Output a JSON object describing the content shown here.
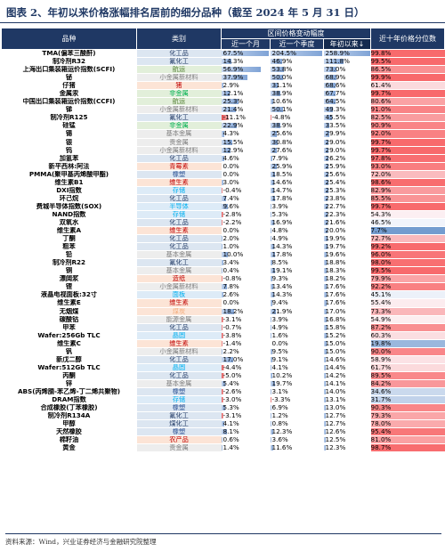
{
  "title": "图表 2、年初以来价格涨幅排名居前的细分品种（截至 2024 年 5 月 31 日）",
  "header": {
    "name": "品种",
    "category": "类别",
    "group": "区间价格变动幅度",
    "m1": "近一个月",
    "q1": "近一个季度",
    "ytd": "年初以来↓",
    "pct": "近十年价格分位数"
  },
  "colors": {
    "header_bg": "#1f3864",
    "bar_positive": "#7fa3d6",
    "bar_negative": "#e04848",
    "pct_high": "#f8696b",
    "pct_low": "#5a8ac6"
  },
  "rows": [
    {
      "name": "TMA(偏苯三酸酐)",
      "cat": "化工品",
      "m1": 67.5,
      "q1": 204.5,
      "ytd": 258.9,
      "pct": 99.8
    },
    {
      "name": "制冷剂R32",
      "cat": "氟化工",
      "m1": 14.3,
      "q1": 46.9,
      "ytd": 111.8,
      "pct": 99.5
    },
    {
      "name": "上海出口集装箱运价指数(SCFI)",
      "cat": "航运",
      "m1": 56.9,
      "q1": 53.8,
      "ytd": 73.0,
      "pct": 86.5
    },
    {
      "name": "铋",
      "cat": "小金属新材料",
      "m1": 37.9,
      "q1": 50.0,
      "ytd": 68.9,
      "pct": 99.9
    },
    {
      "name": "仔猪",
      "cat": "猪",
      "m1": 2.9,
      "q1": 31.1,
      "ytd": 68.6,
      "pct": 61.4
    },
    {
      "name": "金属汞",
      "cat": "非金属",
      "m1": 12.1,
      "q1": 38.9,
      "ytd": 67.7,
      "pct": 99.7
    },
    {
      "name": "中国出口集装箱运价指数(CCFI)",
      "cat": "航运",
      "m1": 25.3,
      "q1": 10.6,
      "ytd": 64.5,
      "pct": 80.6
    },
    {
      "name": "锑",
      "cat": "小金属新材料",
      "m1": 21.4,
      "q1": 50.1,
      "ytd": 49.3,
      "pct": 91.0
    },
    {
      "name": "制冷剂R125",
      "cat": "氟化工",
      "m1": -11.1,
      "q1": -4.8,
      "ytd": 45.5,
      "pct": 82.5
    },
    {
      "name": "硅锰",
      "cat": "非金属",
      "m1": 22.9,
      "q1": 38.9,
      "ytd": 33.5,
      "pct": 90.9
    },
    {
      "name": "锡",
      "cat": "基本金属",
      "m1": 4.3,
      "q1": 25.6,
      "ytd": 29.9,
      "pct": 92.0
    },
    {
      "name": "银",
      "cat": "贵金属",
      "m1": 15.5,
      "q1": 30.8,
      "ytd": 29.0,
      "pct": 99.7
    },
    {
      "name": "钨",
      "cat": "小金属新材料",
      "m1": 12.9,
      "q1": 27.6,
      "ytd": 29.0,
      "pct": 99.7
    },
    {
      "name": "加氢苯",
      "cat": "化工品",
      "m1": 4.6,
      "q1": 7.9,
      "ytd": 26.2,
      "pct": 97.8
    },
    {
      "name": "新平西林:阿法",
      "cat": "青霉素",
      "m1": 0.0,
      "q1": 25.9,
      "ytd": 25.9,
      "pct": 93.0
    },
    {
      "name": "PMMA(聚甲基丙烯酸甲酯)",
      "cat": "橡塑",
      "m1": 0.0,
      "q1": 18.5,
      "ytd": 25.6,
      "pct": 72.0
    },
    {
      "name": "维生素B1",
      "cat": "维生素",
      "m1": 3.0,
      "q1": 14.6,
      "ytd": 25.4,
      "pct": 98.6
    },
    {
      "name": "DXI指数",
      "cat": "存储",
      "m1": -0.4,
      "q1": 14.7,
      "ytd": 25.3,
      "pct": 82.9
    },
    {
      "name": "环己烷",
      "cat": "化工品",
      "m1": 7.4,
      "q1": 17.8,
      "ytd": 23.8,
      "pct": 85.5
    },
    {
      "name": "费城半导体指数(SOX)",
      "cat": "半导体",
      "m1": 9.6,
      "q1": 3.9,
      "ytd": 22.7,
      "pct": 99.7
    },
    {
      "name": "NAND指数",
      "cat": "存储",
      "m1": -2.8,
      "q1": 5.3,
      "ytd": 22.3,
      "pct": 54.3
    },
    {
      "name": "双氧水",
      "cat": "化工品",
      "m1": -2.2,
      "q1": 16.9,
      "ytd": 21.6,
      "pct": 46.5
    },
    {
      "name": "维生素A",
      "cat": "维生素",
      "m1": 0.0,
      "q1": 4.8,
      "ytd": 20.0,
      "pct": 7.7
    },
    {
      "name": "丁酮",
      "cat": "化工品",
      "m1": 2.0,
      "q1": 4.9,
      "ytd": 19.9,
      "pct": 72.7
    },
    {
      "name": "粗苯",
      "cat": "化工品",
      "m1": 1.0,
      "q1": 14.3,
      "ytd": 19.7,
      "pct": 99.2
    },
    {
      "name": "铅",
      "cat": "基本金属",
      "m1": 10.0,
      "q1": 17.8,
      "ytd": 19.6,
      "pct": 96.0
    },
    {
      "name": "制冷剂R22",
      "cat": "氟化工",
      "m1": 3.4,
      "q1": 8.5,
      "ytd": 18.8,
      "pct": 98.0
    },
    {
      "name": "铜",
      "cat": "基本金属",
      "m1": 0.4,
      "q1": 19.1,
      "ytd": 18.3,
      "pct": 99.5
    },
    {
      "name": "漂阔浆",
      "cat": "造纸",
      "m1": -0.8,
      "q1": 9.3,
      "ytd": 18.2,
      "pct": 79.9
    },
    {
      "name": "锂",
      "cat": "小金属新材料",
      "m1": 7.8,
      "q1": 13.4,
      "ytd": 17.6,
      "pct": 92.2
    },
    {
      "name": "液晶电视面板:32寸",
      "cat": "面板",
      "m1": 2.6,
      "q1": 14.3,
      "ytd": 17.6,
      "pct": 45.1
    },
    {
      "name": "维生素E",
      "cat": "维生素",
      "m1": 0.0,
      "q1": 9.4,
      "ytd": 17.6,
      "pct": 55.4
    },
    {
      "name": "无烟煤",
      "cat": "煤炭",
      "m1": 18.2,
      "q1": 21.9,
      "ytd": 17.0,
      "pct": 73.3
    },
    {
      "name": "碳酸钴",
      "cat": "能源金属",
      "m1": -3.1,
      "q1": 3.9,
      "ytd": 16.8,
      "pct": 54.9
    },
    {
      "name": "甲苯",
      "cat": "化工品",
      "m1": -0.7,
      "q1": 4.9,
      "ytd": 15.8,
      "pct": 87.2
    },
    {
      "name": "Wafer:256Gb TLC",
      "cat": "晶圆",
      "m1": -3.8,
      "q1": 1.6,
      "ytd": 15.2,
      "pct": 60.3
    },
    {
      "name": "维生素C",
      "cat": "维生素",
      "m1": -1.4,
      "q1": 0.0,
      "ytd": 15.0,
      "pct": 19.8
    },
    {
      "name": "钒",
      "cat": "小金属新材料",
      "m1": 2.2,
      "q1": 9.5,
      "ytd": 15.0,
      "pct": 90.0
    },
    {
      "name": "新戊二醇",
      "cat": "化工品",
      "m1": 17.0,
      "q1": 9.1,
      "ytd": 14.6,
      "pct": 58.9
    },
    {
      "name": "Wafer:512Gb TLC",
      "cat": "晶圆",
      "m1": -4.4,
      "q1": 4.1,
      "ytd": 14.4,
      "pct": 61.7
    },
    {
      "name": "丙酮",
      "cat": "化工品",
      "m1": -5.0,
      "q1": 10.2,
      "ytd": 14.2,
      "pct": 89.5
    },
    {
      "name": "锌",
      "cat": "基本金属",
      "m1": 5.4,
      "q1": 19.7,
      "ytd": 14.1,
      "pct": 84.2
    },
    {
      "name": "ABS(丙烯腈-苯乙烯-丁二烯共聚物)",
      "cat": "橡塑",
      "m1": -2.6,
      "q1": 3.1,
      "ytd": 14.0,
      "pct": 34.6
    },
    {
      "name": "DRAM指数",
      "cat": "存储",
      "m1": -3.0,
      "q1": -3.3,
      "ytd": 13.1,
      "pct": 31.7
    },
    {
      "name": "合成橡胶(丁苯橡胶)",
      "cat": "橡塑",
      "m1": 5.3,
      "q1": 6.9,
      "ytd": 13.0,
      "pct": 90.3
    },
    {
      "name": "制冷剂R134A",
      "cat": "氟化工",
      "m1": -3.1,
      "q1": 1.2,
      "ytd": 12.7,
      "pct": 79.3
    },
    {
      "name": "甲醇",
      "cat": "煤化工",
      "m1": 4.1,
      "q1": 0.8,
      "ytd": 12.7,
      "pct": 78.0
    },
    {
      "name": "天然橡胶",
      "cat": "橡塑",
      "m1": 8.1,
      "q1": 12.3,
      "ytd": 12.6,
      "pct": 95.4
    },
    {
      "name": "棉籽油",
      "cat": "农产品",
      "m1": 0.6,
      "q1": 3.6,
      "ytd": 12.5,
      "pct": 81.0
    },
    {
      "name": "黄金",
      "cat": "贵金属",
      "m1": 1.4,
      "q1": 11.6,
      "ytd": 12.3,
      "pct": 98.7
    }
  ],
  "footer": "资料来源：Wind，兴业证券经济与金融研究院整理"
}
